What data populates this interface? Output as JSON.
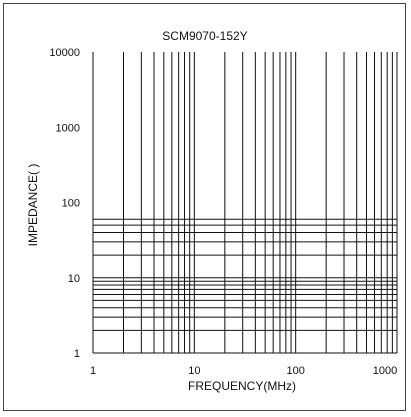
{
  "chart_data": {
    "type": "line",
    "title": "SCM9070-152Y",
    "xlabel": "FREQUENCY(MHz)",
    "ylabel": "IMPEDANCE(  )",
    "x_scale": "log",
    "y_scale": "log",
    "xlim": [
      1,
      1000
    ],
    "ylim": [
      1,
      10000
    ],
    "x_ticks": [
      1,
      10,
      100,
      1000
    ],
    "x_tick_labels": [
      "1",
      "10",
      "100",
      "1000"
    ],
    "y_ticks": [
      1,
      10,
      100,
      1000,
      10000
    ],
    "y_tick_labels": [
      "1",
      "10",
      "100",
      "1000",
      "10000"
    ],
    "vertical_gridlines": [
      2,
      3,
      4,
      5,
      6,
      7,
      8,
      9,
      10,
      20,
      30,
      40,
      50,
      60,
      70,
      80,
      90,
      100,
      200,
      300,
      400,
      500,
      600,
      700,
      800,
      900,
      1000
    ],
    "horizontal_gridlines": [
      2,
      3,
      4,
      5,
      6,
      7,
      8,
      9,
      10,
      20,
      30,
      40,
      50,
      60
    ],
    "series": [],
    "grid": true
  }
}
